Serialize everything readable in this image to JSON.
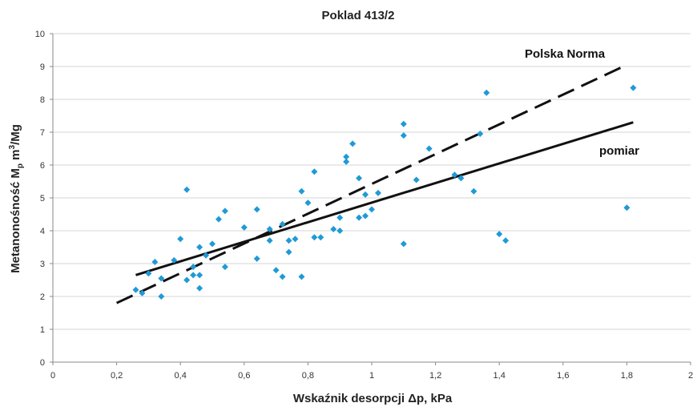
{
  "chart_data": {
    "type": "scatter",
    "title": "Poklad 413/2",
    "xlabel": "Wskaźnik desorpcji Δp, kPa",
    "ylabel_main": "Metanonośność M",
    "ylabel_sub": "p",
    "ylabel_unit": " m",
    "ylabel_sup": "3",
    "ylabel_tail": "/Mg",
    "xlim": [
      0,
      2
    ],
    "ylim": [
      0,
      10
    ],
    "x_ticks": [
      0,
      0.2,
      0.4,
      0.6,
      0.8,
      1,
      1.2,
      1.4,
      1.6,
      1.8,
      2
    ],
    "x_tick_labels": [
      "0",
      "0,2",
      "0,4",
      "0,6",
      "0,8",
      "1",
      "1,2",
      "1,4",
      "1,6",
      "1,8",
      "2"
    ],
    "y_ticks": [
      0,
      1,
      2,
      3,
      4,
      5,
      6,
      7,
      8,
      9,
      10
    ],
    "y_tick_labels": [
      "0",
      "1",
      "2",
      "3",
      "4",
      "5",
      "6",
      "7",
      "8",
      "9",
      "10"
    ],
    "grid": "horizontal",
    "point_color": "#1f9ad6",
    "points": [
      [
        0.26,
        2.2
      ],
      [
        0.28,
        2.1
      ],
      [
        0.3,
        2.7
      ],
      [
        0.32,
        3.05
      ],
      [
        0.34,
        2.0
      ],
      [
        0.34,
        2.55
      ],
      [
        0.38,
        3.1
      ],
      [
        0.4,
        3.75
      ],
      [
        0.42,
        5.25
      ],
      [
        0.42,
        2.5
      ],
      [
        0.44,
        2.65
      ],
      [
        0.44,
        2.9
      ],
      [
        0.46,
        2.25
      ],
      [
        0.46,
        2.65
      ],
      [
        0.46,
        3.5
      ],
      [
        0.48,
        3.25
      ],
      [
        0.5,
        3.6
      ],
      [
        0.52,
        4.35
      ],
      [
        0.54,
        4.6
      ],
      [
        0.54,
        2.9
      ],
      [
        0.6,
        4.1
      ],
      [
        0.64,
        4.65
      ],
      [
        0.64,
        3.15
      ],
      [
        0.68,
        3.7
      ],
      [
        0.68,
        4.05
      ],
      [
        0.7,
        2.8
      ],
      [
        0.72,
        2.6
      ],
      [
        0.72,
        4.2
      ],
      [
        0.74,
        3.35
      ],
      [
        0.74,
        3.7
      ],
      [
        0.76,
        3.75
      ],
      [
        0.78,
        2.6
      ],
      [
        0.78,
        5.2
      ],
      [
        0.8,
        4.85
      ],
      [
        0.82,
        5.8
      ],
      [
        0.82,
        3.8
      ],
      [
        0.84,
        3.8
      ],
      [
        0.88,
        4.05
      ],
      [
        0.9,
        4.0
      ],
      [
        0.9,
        4.4
      ],
      [
        0.92,
        6.1
      ],
      [
        0.92,
        6.25
      ],
      [
        0.94,
        6.65
      ],
      [
        0.96,
        5.6
      ],
      [
        0.96,
        4.4
      ],
      [
        0.98,
        5.1
      ],
      [
        0.98,
        4.45
      ],
      [
        1.0,
        4.65
      ],
      [
        1.02,
        5.15
      ],
      [
        1.1,
        7.25
      ],
      [
        1.1,
        6.9
      ],
      [
        1.1,
        3.6
      ],
      [
        1.14,
        5.55
      ],
      [
        1.18,
        6.5
      ],
      [
        1.26,
        5.7
      ],
      [
        1.28,
        5.6
      ],
      [
        1.32,
        5.2
      ],
      [
        1.34,
        6.95
      ],
      [
        1.36,
        8.2
      ],
      [
        1.4,
        3.9
      ],
      [
        1.42,
        3.7
      ],
      [
        1.8,
        4.7
      ],
      [
        1.82,
        8.35
      ]
    ],
    "series": [
      {
        "name": "Polska Norma",
        "x": [
          0.2,
          1.8
        ],
        "y": [
          1.8,
          9.05
        ],
        "style": "dashed"
      },
      {
        "name": "pomiar",
        "x": [
          0.26,
          1.82
        ],
        "y": [
          2.65,
          7.3
        ],
        "style": "solid"
      }
    ]
  }
}
